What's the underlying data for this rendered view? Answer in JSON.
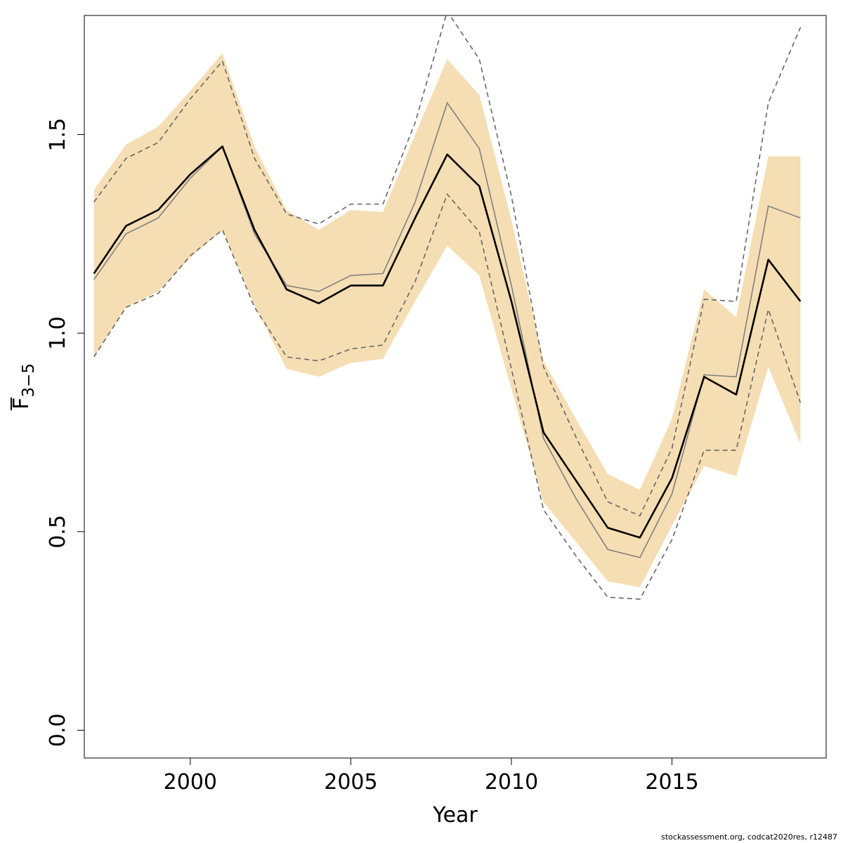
{
  "colors": {
    "band": "#f5deb3",
    "main_line": "#000000",
    "alt_line": "#808080",
    "alt_ci": "#666666",
    "axes": "#000000"
  },
  "chart_data": {
    "type": "line",
    "xlabel": "Year",
    "ylabel_base": "F",
    "ylabel_subscript": "3−5",
    "xlim": [
      1996.7,
      2019.8
    ],
    "ylim": [
      -0.07,
      1.8
    ],
    "xticks": [
      2000,
      2005,
      2010,
      2015
    ],
    "yticks": [
      0.0,
      0.5,
      1.0,
      1.5
    ],
    "ytick_labels": [
      "0.0",
      "0.5",
      "1.0",
      "1.5"
    ],
    "grid": false,
    "x": [
      1997,
      1998,
      1999,
      2000,
      2001,
      2002,
      2003,
      2004,
      2005,
      2006,
      2007,
      2008,
      2009,
      2010,
      2011,
      2012,
      2013,
      2014,
      2015,
      2016,
      2017,
      2018,
      2019
    ],
    "series": [
      {
        "style": "thick solid black line",
        "values": [
          1.15,
          1.27,
          1.31,
          1.4,
          1.47,
          1.26,
          1.11,
          1.075,
          1.12,
          1.12,
          1.29,
          1.45,
          1.37,
          1.08,
          0.75,
          0.63,
          0.51,
          0.485,
          0.635,
          0.89,
          0.845,
          1.185,
          1.08
        ]
      },
      {
        "style": "shaded confidence band",
        "lower": [
          0.94,
          1.065,
          1.105,
          1.19,
          1.26,
          1.07,
          0.91,
          0.89,
          0.925,
          0.935,
          1.08,
          1.22,
          1.145,
          0.86,
          0.575,
          0.475,
          0.375,
          0.36,
          0.515,
          0.665,
          0.64,
          0.915,
          0.72
        ],
        "upper": [
          1.36,
          1.475,
          1.52,
          1.61,
          1.705,
          1.47,
          1.31,
          1.26,
          1.31,
          1.305,
          1.5,
          1.69,
          1.6,
          1.285,
          0.93,
          0.785,
          0.645,
          0.605,
          0.785,
          1.11,
          1.04,
          1.445,
          1.445
        ]
      },
      {
        "style": "thin solid grey line",
        "values": [
          1.135,
          1.25,
          1.29,
          1.39,
          1.47,
          1.25,
          1.12,
          1.105,
          1.145,
          1.15,
          1.33,
          1.58,
          1.465,
          1.12,
          0.735,
          0.585,
          0.455,
          0.435,
          0.595,
          0.895,
          0.89,
          1.32,
          1.29
        ]
      },
      {
        "style": "dashed grey lower bound",
        "values": [
          0.94,
          1.065,
          1.1,
          1.195,
          1.26,
          1.065,
          0.94,
          0.93,
          0.96,
          0.97,
          1.13,
          1.35,
          1.255,
          0.91,
          0.555,
          0.44,
          0.335,
          0.33,
          0.48,
          0.705,
          0.705,
          1.06,
          0.825
        ]
      },
      {
        "style": "dashed grey upper bound",
        "values": [
          1.33,
          1.44,
          1.48,
          1.59,
          1.685,
          1.44,
          1.3,
          1.275,
          1.325,
          1.325,
          1.53,
          1.81,
          1.69,
          1.345,
          0.915,
          0.74,
          0.575,
          0.54,
          0.71,
          1.085,
          1.08,
          1.58,
          1.77
        ]
      }
    ]
  },
  "footer_text": "stockassessment.org, codcat2020res, r12487"
}
